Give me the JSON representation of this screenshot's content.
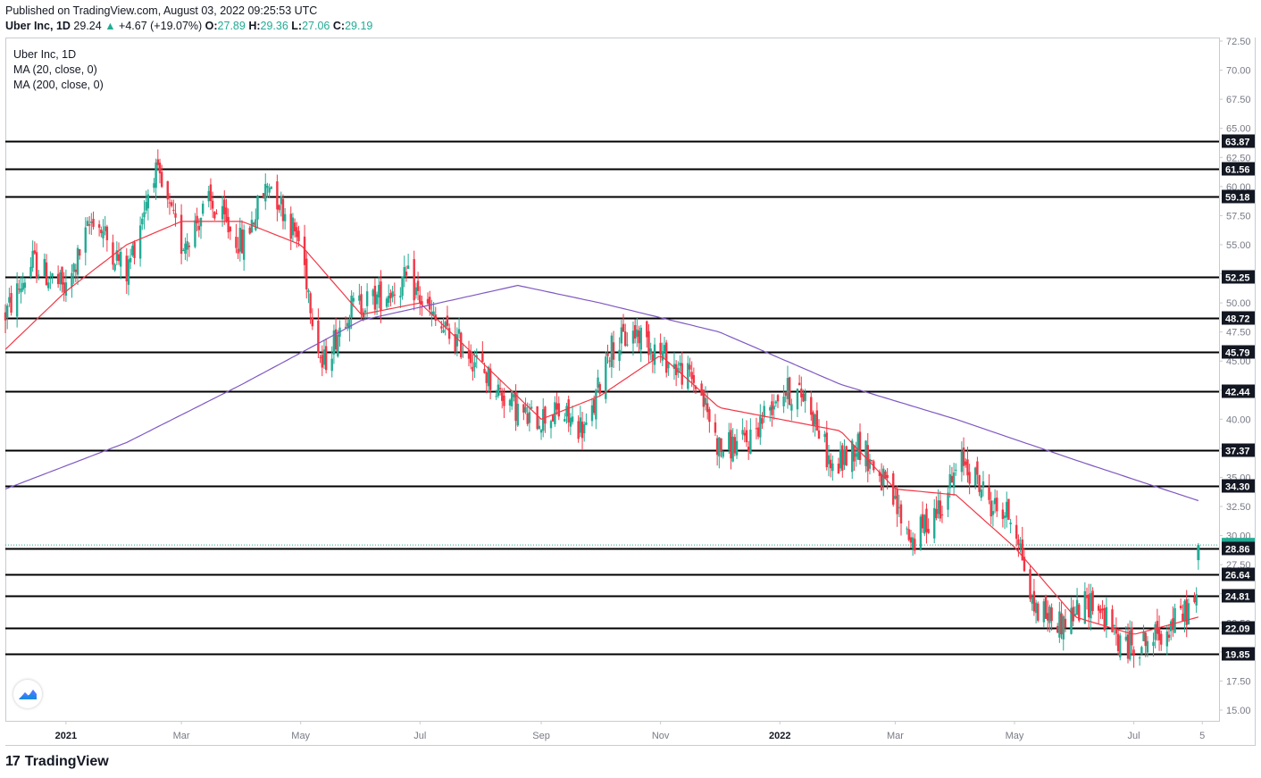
{
  "header": {
    "published": "Published on TradingView.com, August 03, 2022 09:25:53 UTC",
    "symbol": "Uber Inc, 1D",
    "last": "29.24",
    "change_arrow": "▲",
    "change": "+4.67 (+19.07%)",
    "o_label": "O:",
    "o_val": "27.89",
    "h_label": "H:",
    "h_val": "29.36",
    "l_label": "L:",
    "l_val": "27.06",
    "c_label": "C:",
    "c_val": "29.19"
  },
  "legend": {
    "title": "Uber Inc, 1D",
    "ma20": "MA (20, close, 0)",
    "ma200": "MA (200, close, 0)"
  },
  "footer": {
    "brand": "TradingView",
    "mark": "17"
  },
  "colors": {
    "up": "#22ab94",
    "down": "#f23645",
    "ma20": "#f23645",
    "ma200": "#7e57c2",
    "level": "#000000",
    "current": "#22ab94",
    "axis_text": "#787b86"
  },
  "chart_data": {
    "type": "candlestick",
    "ylim": [
      14,
      73
    ],
    "y_ticks": [
      "15.00",
      "17.50",
      "20.00",
      "22.50",
      "25.00",
      "27.50",
      "30.00",
      "32.50",
      "35.00",
      "37.50",
      "40.00",
      "42.50",
      "45.00",
      "47.50",
      "50.00",
      "52.50",
      "55.00",
      "57.50",
      "60.00",
      "62.50",
      "65.00",
      "67.50",
      "70.00",
      "72.50"
    ],
    "x_ticks": [
      "2021",
      "Mar",
      "May",
      "Jul",
      "Sep",
      "Nov",
      "2022",
      "Mar",
      "May",
      "Jul",
      "5"
    ],
    "x_tick_dates": [
      "2021-01-01",
      "2021-03-01",
      "2021-05-01",
      "2021-07-01",
      "2021-09-01",
      "2021-11-01",
      "2022-01-01",
      "2022-03-01",
      "2022-05-01",
      "2022-07-01",
      "2022-08-05"
    ],
    "date_range": [
      "2020-12-01",
      "2022-08-09"
    ],
    "levels": [
      63.87,
      61.56,
      59.18,
      52.25,
      48.72,
      45.79,
      42.44,
      37.37,
      34.3,
      28.86,
      26.64,
      24.81,
      22.09,
      19.85
    ],
    "level_labels": [
      "63.87",
      "61.56",
      "59.18",
      "52.25",
      "48.72",
      "45.79",
      "42.44",
      "37.37",
      "34.30",
      "28.86",
      "26.64",
      "24.81",
      "22.09",
      "19.85"
    ],
    "current_price": 29.19,
    "current_label": "29.19",
    "price_path": [
      [
        "2020-12-01",
        49.0
      ],
      [
        "2020-12-15",
        53.5
      ],
      [
        "2021-01-01",
        51.0
      ],
      [
        "2021-01-15",
        57.5
      ],
      [
        "2021-02-01",
        52.5
      ],
      [
        "2021-02-15",
        61.5
      ],
      [
        "2021-03-01",
        55.0
      ],
      [
        "2021-03-15",
        58.5
      ],
      [
        "2021-04-01",
        55.0
      ],
      [
        "2021-04-15",
        60.5
      ],
      [
        "2021-05-01",
        55.0
      ],
      [
        "2021-05-12",
        44.5
      ],
      [
        "2021-05-25",
        49.5
      ],
      [
        "2021-06-10",
        50.5
      ],
      [
        "2021-06-25",
        52.0
      ],
      [
        "2021-07-10",
        48.0
      ],
      [
        "2021-07-25",
        46.0
      ],
      [
        "2021-08-10",
        42.5
      ],
      [
        "2021-08-25",
        40.0
      ],
      [
        "2021-09-10",
        40.5
      ],
      [
        "2021-09-25",
        39.0
      ],
      [
        "2021-10-05",
        46.0
      ],
      [
        "2021-10-20",
        47.5
      ],
      [
        "2021-11-05",
        45.0
      ],
      [
        "2021-11-20",
        43.0
      ],
      [
        "2021-12-01",
        37.5
      ],
      [
        "2021-12-15",
        38.0
      ],
      [
        "2022-01-01",
        42.5
      ],
      [
        "2022-01-15",
        42.0
      ],
      [
        "2022-01-28",
        35.5
      ],
      [
        "2022-02-10",
        38.0
      ],
      [
        "2022-02-20",
        35.5
      ],
      [
        "2022-03-01",
        32.5
      ],
      [
        "2022-03-10",
        29.5
      ],
      [
        "2022-03-25",
        33.0
      ],
      [
        "2022-04-05",
        36.5
      ],
      [
        "2022-04-20",
        32.5
      ],
      [
        "2022-05-01",
        31.5
      ],
      [
        "2022-05-10",
        24.0
      ],
      [
        "2022-05-25",
        22.5
      ],
      [
        "2022-06-10",
        24.5
      ],
      [
        "2022-06-25",
        20.5
      ],
      [
        "2022-07-10",
        21.0
      ],
      [
        "2022-07-25",
        23.0
      ],
      [
        "2022-08-02",
        24.5
      ],
      [
        "2022-08-03",
        29.19
      ]
    ],
    "ma20_path": [
      [
        "2020-12-01",
        46.0
      ],
      [
        "2021-01-01",
        51.0
      ],
      [
        "2021-02-01",
        55.0
      ],
      [
        "2021-03-01",
        57.0
      ],
      [
        "2021-04-01",
        57.0
      ],
      [
        "2021-05-01",
        55.0
      ],
      [
        "2021-06-01",
        49.0
      ],
      [
        "2021-07-01",
        50.0
      ],
      [
        "2021-08-01",
        45.0
      ],
      [
        "2021-09-01",
        40.0
      ],
      [
        "2021-10-01",
        42.0
      ],
      [
        "2021-11-01",
        45.5
      ],
      [
        "2021-12-01",
        41.0
      ],
      [
        "2022-01-01",
        40.0
      ],
      [
        "2022-02-01",
        39.0
      ],
      [
        "2022-03-01",
        34.0
      ],
      [
        "2022-04-01",
        33.5
      ],
      [
        "2022-05-01",
        29.0
      ],
      [
        "2022-06-01",
        23.0
      ],
      [
        "2022-07-01",
        21.5
      ],
      [
        "2022-08-03",
        23.0
      ]
    ],
    "ma200_path": [
      [
        "2020-12-01",
        34.0
      ],
      [
        "2021-02-01",
        38.0
      ],
      [
        "2021-04-01",
        43.0
      ],
      [
        "2021-06-01",
        48.5
      ],
      [
        "2021-08-20",
        51.5
      ],
      [
        "2021-10-01",
        50.0
      ],
      [
        "2021-12-01",
        47.5
      ],
      [
        "2022-02-01",
        43.0
      ],
      [
        "2022-04-01",
        40.0
      ],
      [
        "2022-06-01",
        36.5
      ],
      [
        "2022-08-03",
        33.0
      ]
    ]
  }
}
